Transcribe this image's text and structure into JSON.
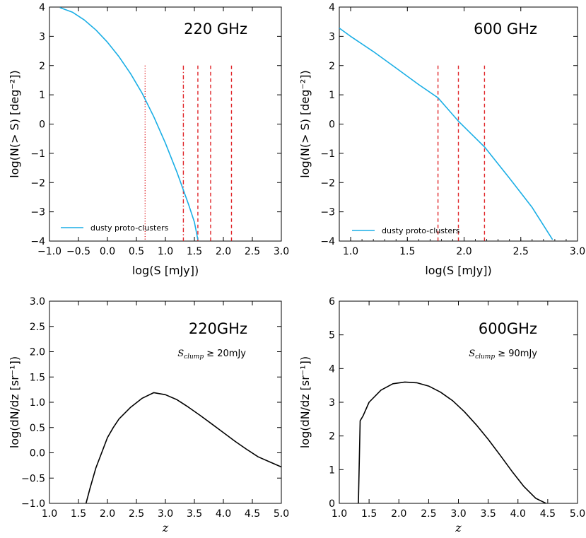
{
  "chart_data": [
    {
      "type": "line",
      "panel": "top-left",
      "annotation": "220 GHz",
      "xlabel": "log(S [mJy])",
      "ylabel": "log(N(> S) [deg⁻²])",
      "xlim": [
        -1.0,
        3.0
      ],
      "ylim": [
        -4,
        4
      ],
      "xticks": [
        "−1.0",
        "−0.5",
        "0.0",
        "0.5",
        "1.0",
        "1.5",
        "2.0",
        "2.5",
        "3.0"
      ],
      "yticks": [
        "−4",
        "−3",
        "−2",
        "−1",
        "0",
        "1",
        "2",
        "3",
        "4"
      ],
      "legend": {
        "label": "dusty proto-clusters",
        "location": "lower-left"
      },
      "series": [
        {
          "name": "dusty proto-clusters",
          "color": "#1aaee5",
          "x": [
            -0.82,
            -0.6,
            -0.4,
            -0.2,
            0.0,
            0.2,
            0.4,
            0.6,
            0.8,
            1.0,
            1.2,
            1.4,
            1.5,
            1.56
          ],
          "y": [
            3.98,
            3.82,
            3.56,
            3.22,
            2.8,
            2.3,
            1.72,
            1.05,
            0.25,
            -0.65,
            -1.65,
            -2.75,
            -3.35,
            -3.95
          ]
        }
      ],
      "vlines": [
        {
          "x": 0.65,
          "y_top": 2.0,
          "style": "dotted",
          "color": "#e0262a"
        },
        {
          "x": 1.31,
          "y_top": 2.0,
          "style": "dashdot",
          "color": "#e0262a"
        },
        {
          "x": 1.56,
          "y_top": 2.0,
          "style": "dashed",
          "color": "#e0262a"
        },
        {
          "x": 1.78,
          "y_top": 2.0,
          "style": "dashed",
          "color": "#e0262a"
        },
        {
          "x": 2.14,
          "y_top": 2.0,
          "style": "dashed",
          "color": "#e0262a"
        }
      ]
    },
    {
      "type": "line",
      "panel": "top-right",
      "annotation": "600 GHz",
      "xlabel": "log(S [mJy])",
      "ylabel": "log(N(> S) [deg⁻²])",
      "xlim": [
        0.9,
        3.0
      ],
      "ylim": [
        -4,
        4
      ],
      "xticks": [
        "1.0",
        "1.5",
        "2.0",
        "2.5",
        "3.0"
      ],
      "yticks": [
        "−4",
        "−3",
        "−2",
        "−1",
        "0",
        "1",
        "2",
        "3",
        "4"
      ],
      "legend": {
        "label": "dusty proto-clusters",
        "location": "lower-left"
      },
      "series": [
        {
          "name": "dusty proto-clusters",
          "color": "#1aaee5",
          "x": [
            0.9,
            1.0,
            1.2,
            1.4,
            1.6,
            1.77,
            1.95,
            2.18,
            2.4,
            2.6,
            2.78
          ],
          "y": [
            3.28,
            3.0,
            2.48,
            1.92,
            1.35,
            0.9,
            0.1,
            -0.78,
            -1.85,
            -2.85,
            -3.95
          ]
        }
      ],
      "vlines": [
        {
          "x": 1.77,
          "y_top": 2.0,
          "style": "dashed",
          "color": "#e0262a"
        },
        {
          "x": 1.95,
          "y_top": 2.0,
          "style": "dashed",
          "color": "#e0262a"
        },
        {
          "x": 2.18,
          "y_top": 2.0,
          "style": "dashed",
          "color": "#e0262a"
        }
      ]
    },
    {
      "type": "line",
      "panel": "bottom-left",
      "annotation": "220GHz",
      "condition": "S_clump ≥ 20mJy",
      "xlabel": "z",
      "ylabel": "log(dN/dz [sr⁻¹])",
      "xlim": [
        1.0,
        5.0
      ],
      "ylim": [
        -1.0,
        3.0
      ],
      "xticks": [
        "1.0",
        "1.5",
        "2.0",
        "2.5",
        "3.0",
        "3.5",
        "4.0",
        "4.5",
        "5.0"
      ],
      "yticks": [
        "−1.0",
        "−0.5",
        "0.0",
        "0.5",
        "1.0",
        "1.5",
        "2.0",
        "2.5",
        "3.0"
      ],
      "series": [
        {
          "name": "dN/dz",
          "color": "#000000",
          "x": [
            1.63,
            1.7,
            1.8,
            1.9,
            2.0,
            2.1,
            2.2,
            2.4,
            2.6,
            2.8,
            3.0,
            3.2,
            3.4,
            3.6,
            3.8,
            4.0,
            4.2,
            4.4,
            4.6,
            4.8,
            5.0
          ],
          "y": [
            -1.0,
            -0.7,
            -0.3,
            0.0,
            0.3,
            0.5,
            0.67,
            0.9,
            1.08,
            1.19,
            1.15,
            1.05,
            0.9,
            0.74,
            0.57,
            0.4,
            0.23,
            0.07,
            -0.08,
            -0.18,
            -0.28
          ]
        }
      ]
    },
    {
      "type": "line",
      "panel": "bottom-right",
      "annotation": "600GHz",
      "condition": "S_clump ≥ 90mJy",
      "xlabel": "z",
      "ylabel": "log(dN/dz [sr⁻¹])",
      "xlim": [
        1.0,
        5.0
      ],
      "ylim": [
        0,
        6
      ],
      "xticks": [
        "1.0",
        "1.5",
        "2.0",
        "2.5",
        "3.0",
        "3.5",
        "4.0",
        "4.5",
        "5.0"
      ],
      "yticks": [
        "0",
        "1",
        "2",
        "3",
        "4",
        "5",
        "6"
      ],
      "series": [
        {
          "name": "dN/dz",
          "color": "#000000",
          "x": [
            1.32,
            1.35,
            1.4,
            1.5,
            1.7,
            1.9,
            2.1,
            2.3,
            2.5,
            2.7,
            2.9,
            3.1,
            3.3,
            3.5,
            3.7,
            3.9,
            4.1,
            4.3,
            4.53
          ],
          "y": [
            0.0,
            2.45,
            2.6,
            3.0,
            3.36,
            3.55,
            3.6,
            3.58,
            3.48,
            3.3,
            3.05,
            2.72,
            2.33,
            1.9,
            1.43,
            0.95,
            0.5,
            0.15,
            -0.05
          ]
        }
      ]
    }
  ]
}
